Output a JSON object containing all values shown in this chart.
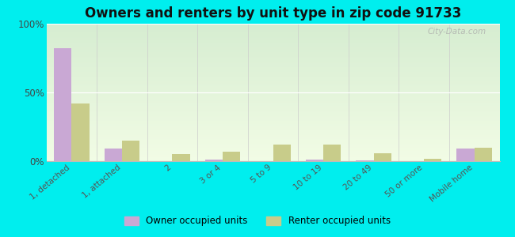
{
  "title": "Owners and renters by unit type in zip code 91733",
  "categories": [
    "1, detached",
    "1, attached",
    "2",
    "3 or 4",
    "5 to 9",
    "10 to 19",
    "20 to 49",
    "50 or more",
    "Mobile home"
  ],
  "owner_values": [
    82,
    9,
    0,
    1,
    0,
    1,
    0.5,
    0,
    9
  ],
  "renter_values": [
    42,
    15,
    5,
    7,
    12,
    12,
    6,
    2,
    10
  ],
  "owner_color": "#c9a8d4",
  "renter_color": "#c8cc8a",
  "outer_bg": "#00eeee",
  "title_fontsize": 12,
  "ylim": [
    0,
    100
  ],
  "yticks": [
    0,
    50,
    100
  ],
  "ytick_labels": [
    "0%",
    "50%",
    "100%"
  ],
  "watermark": "City-Data.com",
  "legend_labels": [
    "Owner occupied units",
    "Renter occupied units"
  ],
  "bar_width": 0.35
}
